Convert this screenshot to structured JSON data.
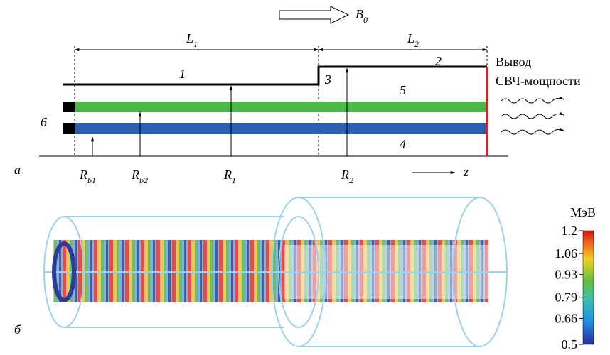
{
  "top": {
    "field": {
      "main": "B",
      "sub": "0"
    },
    "lengths": [
      {
        "main": "L",
        "sub": "1"
      },
      {
        "main": "L",
        "sub": "2"
      }
    ],
    "regions": [
      "1",
      "2",
      "3",
      "4",
      "5",
      "6"
    ],
    "output": [
      "Вывод",
      "СВЧ-мощности"
    ],
    "panel": "а",
    "radii": [
      {
        "main": "R",
        "sub": "b1"
      },
      {
        "main": "R",
        "sub": "b2"
      },
      {
        "main": "R",
        "sub": "1"
      },
      {
        "main": "R",
        "sub": "2"
      }
    ],
    "axis": "z"
  },
  "bottom": {
    "panel": "б",
    "colorbar": {
      "unit": "МэВ",
      "lim": [
        0.5,
        1.2
      ],
      "ticks": [
        1.2,
        1.06,
        0.93,
        0.79,
        0.66,
        0.5
      ]
    }
  }
}
